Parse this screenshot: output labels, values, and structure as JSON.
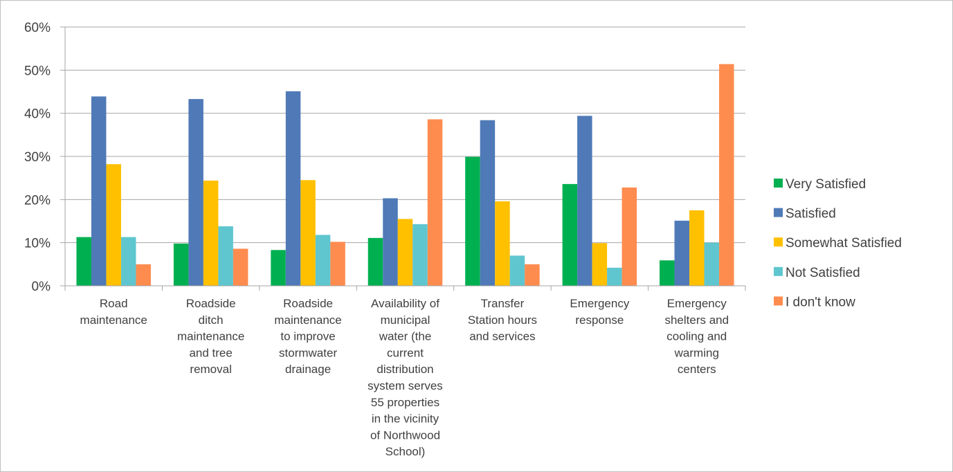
{
  "chart_data": {
    "type": "bar",
    "categories": [
      [
        "Road",
        "maintenance"
      ],
      [
        "Roadside",
        "ditch",
        "maintenance",
        "and tree",
        "removal"
      ],
      [
        "Roadside",
        "maintenance",
        "to improve",
        "stormwater",
        "drainage"
      ],
      [
        "Availability of",
        "municipal",
        "water (the",
        "current",
        "distribution",
        "system serves",
        "55 properties",
        "in the vicinity",
        "of Northwood",
        "School)"
      ],
      [
        "Transfer",
        "Station hours",
        "and services"
      ],
      [
        "Emergency",
        "response"
      ],
      [
        "Emergency",
        "shelters and",
        "cooling and",
        "warming",
        "centers"
      ]
    ],
    "series": [
      {
        "name": "Very Satisfied",
        "color": "#00b050",
        "values": [
          11.3,
          9.8,
          8.3,
          11.1,
          29.9,
          23.6,
          5.9
        ]
      },
      {
        "name": "Satisfied",
        "color": "#4f7ab7",
        "values": [
          43.9,
          43.3,
          45.1,
          20.3,
          38.4,
          39.4,
          15.1
        ]
      },
      {
        "name": "Somewhat Satisfied",
        "color": "#ffc000",
        "values": [
          28.2,
          24.4,
          24.5,
          15.5,
          19.6,
          9.9,
          17.5
        ]
      },
      {
        "name": "Not Satisfied",
        "color": "#5fc6cf",
        "values": [
          11.3,
          13.8,
          11.8,
          14.3,
          7.0,
          4.2,
          10.0
        ]
      },
      {
        "name": "I don't know",
        "color": "#ff8c4f",
        "values": [
          5.0,
          8.6,
          10.2,
          38.6,
          5.0,
          22.8,
          51.4
        ]
      }
    ],
    "yticks": [
      "0%",
      "10%",
      "20%",
      "30%",
      "40%",
      "50%",
      "60%"
    ],
    "ylim": [
      0,
      60
    ],
    "grid": true,
    "legend_position": "right",
    "title": "",
    "xlabel": "",
    "ylabel": ""
  }
}
